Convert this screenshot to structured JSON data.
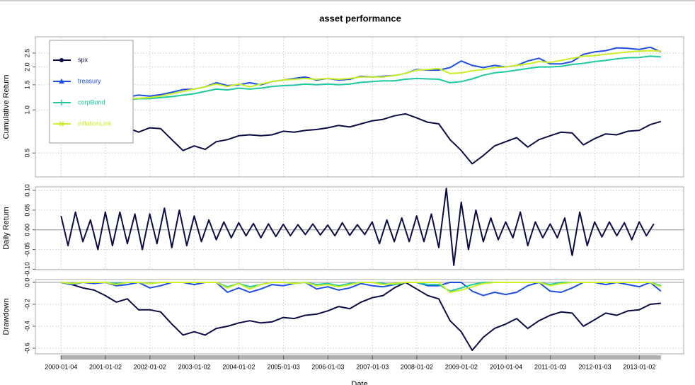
{
  "chart_data": [
    {
      "type": "line",
      "title": "asset performance",
      "ylabel": "Cumulative Return",
      "log_y": true,
      "grid": true,
      "legend": "topleft",
      "ylim": [
        0.34,
        3.25
      ],
      "yticks": [
        0.5,
        {
          "value": 1,
          "label": "1.0"
        },
        1.5,
        {
          "value": 2,
          "label": "2.0"
        },
        2.5
      ],
      "x": [
        "2000-01-04",
        "2000-04-01",
        "2000-07-01",
        "2000-10-01",
        "2001-01-01",
        "2001-04-01",
        "2001-07-01",
        "2001-10-01",
        "2002-01-01",
        "2002-04-01",
        "2002-07-01",
        "2002-10-01",
        "2003-01-01",
        "2003-04-01",
        "2003-07-01",
        "2003-10-01",
        "2004-01-01",
        "2004-04-01",
        "2004-07-01",
        "2004-10-01",
        "2005-01-01",
        "2005-04-01",
        "2005-07-01",
        "2005-10-01",
        "2006-01-01",
        "2006-04-01",
        "2006-07-01",
        "2006-10-01",
        "2007-01-01",
        "2007-04-01",
        "2007-07-01",
        "2007-10-01",
        "2008-01-01",
        "2008-04-01",
        "2008-07-01",
        "2008-10-01",
        "2009-01-01",
        "2009-04-01",
        "2009-07-01",
        "2009-10-01",
        "2010-01-01",
        "2010-04-01",
        "2010-07-01",
        "2010-10-01",
        "2011-01-01",
        "2011-04-01",
        "2011-07-01",
        "2011-10-01",
        "2012-01-01",
        "2012-04-01",
        "2012-07-01",
        "2012-10-01",
        "2013-01-01",
        "2013-04-01",
        "2013-06-28"
      ],
      "series": [
        {
          "name": "spx",
          "color": "#0b0b45",
          "marker": "circle",
          "values": [
            0.8,
            0.82,
            0.8,
            0.79,
            0.76,
            0.72,
            0.75,
            0.7,
            0.75,
            0.74,
            0.62,
            0.52,
            0.56,
            0.53,
            0.6,
            0.62,
            0.66,
            0.67,
            0.66,
            0.67,
            0.71,
            0.7,
            0.72,
            0.73,
            0.75,
            0.78,
            0.76,
            0.8,
            0.84,
            0.86,
            0.91,
            0.94,
            0.88,
            0.82,
            0.8,
            0.62,
            0.52,
            0.42,
            0.48,
            0.56,
            0.6,
            0.64,
            0.55,
            0.62,
            0.66,
            0.7,
            0.69,
            0.57,
            0.63,
            0.68,
            0.67,
            0.71,
            0.72,
            0.79,
            0.83
          ]
        },
        {
          "name": "treasury",
          "color": "#1f4fe0",
          "marker": "triangle",
          "values": [
            1.1,
            1.12,
            1.14,
            1.17,
            1.2,
            1.22,
            1.23,
            1.27,
            1.25,
            1.28,
            1.33,
            1.39,
            1.4,
            1.45,
            1.55,
            1.48,
            1.5,
            1.55,
            1.5,
            1.58,
            1.62,
            1.66,
            1.7,
            1.62,
            1.66,
            1.62,
            1.64,
            1.72,
            1.7,
            1.72,
            1.74,
            1.8,
            1.92,
            1.9,
            1.9,
            1.98,
            2.2,
            2.05,
            1.98,
            2.05,
            2.0,
            2.05,
            2.2,
            2.3,
            2.1,
            2.1,
            2.18,
            2.45,
            2.55,
            2.6,
            2.72,
            2.7,
            2.65,
            2.75,
            2.55
          ]
        },
        {
          "name": "corpBond",
          "color": "#1fc9a0",
          "marker": "plus",
          "values": [
            1.05,
            1.06,
            1.08,
            1.1,
            1.13,
            1.15,
            1.17,
            1.2,
            1.2,
            1.22,
            1.24,
            1.27,
            1.3,
            1.35,
            1.4,
            1.38,
            1.42,
            1.4,
            1.42,
            1.46,
            1.48,
            1.49,
            1.52,
            1.5,
            1.52,
            1.5,
            1.52,
            1.56,
            1.58,
            1.6,
            1.6,
            1.64,
            1.66,
            1.65,
            1.64,
            1.55,
            1.58,
            1.65,
            1.75,
            1.82,
            1.85,
            1.9,
            1.95,
            2.0,
            2.0,
            2.02,
            2.08,
            2.12,
            2.18,
            2.22,
            2.28,
            2.32,
            2.33,
            2.38,
            2.35
          ]
        },
        {
          "name": "inflationLink",
          "color": "#c8f025",
          "marker": "cross",
          "values": [
            1.02,
            1.05,
            1.08,
            1.1,
            1.14,
            1.17,
            1.19,
            1.21,
            1.22,
            1.25,
            1.3,
            1.35,
            1.4,
            1.45,
            1.52,
            1.46,
            1.52,
            1.45,
            1.52,
            1.58,
            1.62,
            1.64,
            1.66,
            1.64,
            1.66,
            1.64,
            1.66,
            1.7,
            1.7,
            1.7,
            1.74,
            1.8,
            1.9,
            1.92,
            1.95,
            1.8,
            1.82,
            1.88,
            1.92,
            1.98,
            2.0,
            2.05,
            2.1,
            2.18,
            2.15,
            2.22,
            2.3,
            2.38,
            2.4,
            2.45,
            2.5,
            2.55,
            2.58,
            2.6,
            2.58
          ]
        }
      ]
    },
    {
      "type": "line",
      "ylabel": "Daily Return",
      "grid": true,
      "ylim": [
        -0.101,
        0.109
      ],
      "yticks": [
        {
          "value": -0.1,
          "label": "-0.10"
        },
        -0.05,
        {
          "value": 0,
          "label": "0.00"
        },
        0.05,
        {
          "value": 0.1,
          "label": "0.10"
        }
      ],
      "x": [
        "2000-01-04",
        "2000-03-01",
        "2000-05-01",
        "2000-07-01",
        "2000-09-01",
        "2000-11-01",
        "2001-01-01",
        "2001-03-01",
        "2001-05-01",
        "2001-07-01",
        "2001-09-01",
        "2001-11-01",
        "2002-01-01",
        "2002-03-01",
        "2002-05-01",
        "2002-07-01",
        "2002-09-01",
        "2002-11-01",
        "2003-01-01",
        "2003-03-01",
        "2003-05-01",
        "2003-07-01",
        "2003-09-01",
        "2003-11-01",
        "2004-01-01",
        "2004-03-01",
        "2004-05-01",
        "2004-07-01",
        "2004-09-01",
        "2004-11-01",
        "2005-01-01",
        "2005-03-01",
        "2005-05-01",
        "2005-07-01",
        "2005-09-01",
        "2005-11-01",
        "2006-01-01",
        "2006-03-01",
        "2006-05-01",
        "2006-07-01",
        "2006-09-01",
        "2006-11-01",
        "2007-01-01",
        "2007-03-01",
        "2007-05-01",
        "2007-07-01",
        "2007-09-01",
        "2007-11-01",
        "2008-01-01",
        "2008-03-01",
        "2008-05-01",
        "2008-07-01",
        "2008-09-01",
        "2008-11-01",
        "2009-01-01",
        "2009-03-01",
        "2009-05-01",
        "2009-07-01",
        "2009-09-01",
        "2009-11-01",
        "2010-01-01",
        "2010-03-01",
        "2010-05-01",
        "2010-07-01",
        "2010-09-01",
        "2010-11-01",
        "2011-01-01",
        "2011-03-01",
        "2011-05-01",
        "2011-07-01",
        "2011-09-01",
        "2011-11-01",
        "2012-01-01",
        "2012-03-01",
        "2012-05-01",
        "2012-07-01",
        "2012-09-01",
        "2012-11-01",
        "2013-01-01",
        "2013-03-01",
        "2013-05-01"
      ],
      "series": [
        {
          "name": "spx",
          "color": "#0b0b45",
          "values": [
            0.035,
            -0.04,
            0.045,
            -0.03,
            0.025,
            -0.05,
            0.045,
            -0.04,
            0.045,
            -0.035,
            0.04,
            -0.05,
            0.04,
            -0.035,
            0.055,
            -0.045,
            0.05,
            -0.04,
            0.035,
            -0.03,
            0.025,
            -0.025,
            0.02,
            -0.02,
            0.018,
            -0.015,
            0.016,
            -0.02,
            0.015,
            -0.017,
            0.014,
            -0.015,
            0.013,
            -0.012,
            0.015,
            -0.013,
            0.012,
            -0.015,
            0.018,
            -0.014,
            0.013,
            -0.012,
            0.02,
            -0.035,
            0.025,
            -0.03,
            0.03,
            -0.03,
            0.035,
            -0.03,
            0.04,
            -0.045,
            0.105,
            -0.09,
            0.07,
            -0.05,
            0.05,
            -0.03,
            0.03,
            -0.025,
            0.02,
            -0.02,
            0.045,
            -0.04,
            0.02,
            -0.02,
            0.015,
            -0.02,
            0.03,
            -0.065,
            0.045,
            -0.04,
            0.02,
            -0.018,
            0.02,
            -0.015,
            0.018,
            -0.025,
            0.02,
            -0.015,
            0.015
          ]
        }
      ]
    },
    {
      "type": "line",
      "ylabel": "Drawdown",
      "xlabel": "Date",
      "grid": true,
      "ylim": [
        -0.652,
        0.026
      ],
      "yticks": [
        {
          "value": 0,
          "label": "0.0"
        },
        -0.2,
        -0.4,
        -0.6
      ],
      "xlim": [
        "1999-06-07",
        "2014-01-01"
      ],
      "xticks": [
        "2000-01-04",
        "2001-01-02",
        "2002-01-02",
        "2003-01-02",
        "2004-01-02",
        "2005-01-03",
        "2006-01-03",
        "2007-01-03",
        "2008-01-02",
        "2009-01-02",
        "2010-01-04",
        "2011-01-03",
        "2012-01-03",
        "2013-01-02"
      ],
      "x": [
        "2000-01-04",
        "2000-04-01",
        "2000-07-01",
        "2000-10-01",
        "2001-01-01",
        "2001-04-01",
        "2001-07-01",
        "2001-10-01",
        "2002-01-01",
        "2002-04-01",
        "2002-07-01",
        "2002-10-01",
        "2003-01-01",
        "2003-04-01",
        "2003-07-01",
        "2003-10-01",
        "2004-01-01",
        "2004-04-01",
        "2004-07-01",
        "2004-10-01",
        "2005-01-01",
        "2005-04-01",
        "2005-07-01",
        "2005-10-01",
        "2006-01-01",
        "2006-04-01",
        "2006-07-01",
        "2006-10-01",
        "2007-01-01",
        "2007-04-01",
        "2007-07-01",
        "2007-10-01",
        "2008-01-01",
        "2008-04-01",
        "2008-07-01",
        "2008-10-01",
        "2009-01-01",
        "2009-04-01",
        "2009-07-01",
        "2009-10-01",
        "2010-01-01",
        "2010-04-01",
        "2010-07-01",
        "2010-10-01",
        "2011-01-01",
        "2011-04-01",
        "2011-07-01",
        "2011-10-01",
        "2012-01-01",
        "2012-04-01",
        "2012-07-01",
        "2012-10-01",
        "2013-01-01",
        "2013-04-01",
        "2013-06-28"
      ],
      "series": [
        {
          "name": "spx",
          "color": "#0b0b45",
          "values": [
            0,
            -0.02,
            -0.05,
            -0.07,
            -0.12,
            -0.18,
            -0.15,
            -0.25,
            -0.25,
            -0.27,
            -0.38,
            -0.48,
            -0.45,
            -0.48,
            -0.42,
            -0.4,
            -0.37,
            -0.35,
            -0.37,
            -0.36,
            -0.32,
            -0.33,
            -0.3,
            -0.29,
            -0.26,
            -0.22,
            -0.24,
            -0.18,
            -0.14,
            -0.12,
            -0.05,
            0,
            -0.06,
            -0.12,
            -0.15,
            -0.35,
            -0.45,
            -0.62,
            -0.5,
            -0.42,
            -0.38,
            -0.33,
            -0.42,
            -0.35,
            -0.3,
            -0.27,
            -0.28,
            -0.4,
            -0.34,
            -0.28,
            -0.3,
            -0.26,
            -0.25,
            -0.2,
            -0.19
          ]
        },
        {
          "name": "treasury",
          "color": "#1f4fe0",
          "values": [
            0,
            -0.02,
            0,
            -0.01,
            0,
            -0.03,
            -0.02,
            0,
            -0.05,
            -0.03,
            0,
            0,
            -0.02,
            0,
            0,
            -0.09,
            -0.05,
            -0.09,
            -0.06,
            -0.02,
            -0.03,
            -0.01,
            0,
            -0.06,
            -0.04,
            -0.07,
            -0.05,
            -0.01,
            -0.03,
            -0.04,
            -0.02,
            0,
            0,
            -0.03,
            -0.03,
            0,
            0,
            -0.08,
            -0.12,
            -0.09,
            -0.11,
            -0.09,
            -0.03,
            0,
            -0.08,
            -0.09,
            -0.05,
            0,
            0,
            -0.02,
            0,
            -0.02,
            -0.04,
            0,
            -0.08
          ]
        },
        {
          "name": "corpBond",
          "color": "#1fc9a0",
          "values": [
            0,
            -0.01,
            0,
            0,
            0,
            -0.01,
            0,
            0,
            -0.01,
            0,
            0,
            0,
            0,
            0,
            0,
            -0.04,
            -0.01,
            -0.04,
            -0.02,
            0,
            0,
            -0.01,
            0,
            -0.02,
            -0.01,
            -0.03,
            -0.01,
            0,
            0,
            -0.01,
            -0.02,
            0,
            0,
            -0.02,
            -0.02,
            -0.08,
            -0.05,
            -0.02,
            0,
            0,
            0,
            0,
            0,
            0,
            -0.02,
            0,
            0,
            0,
            0,
            0,
            0,
            0,
            0,
            0,
            -0.03
          ]
        },
        {
          "name": "inflationLink",
          "color": "#c8f025",
          "values": [
            0,
            -0.01,
            0,
            0,
            0,
            -0.02,
            0,
            0,
            -0.01,
            0,
            0,
            0,
            0,
            0,
            0,
            -0.05,
            -0.01,
            -0.06,
            -0.02,
            0,
            0,
            -0.01,
            0,
            -0.03,
            -0.02,
            -0.04,
            -0.02,
            0,
            0,
            -0.02,
            -0.01,
            0,
            0,
            0,
            0,
            -0.09,
            -0.07,
            -0.04,
            -0.01,
            0,
            0,
            0,
            0,
            0,
            -0.03,
            -0.01,
            0,
            0,
            0,
            0,
            0,
            0,
            0,
            0,
            -0.04
          ]
        }
      ]
    }
  ]
}
